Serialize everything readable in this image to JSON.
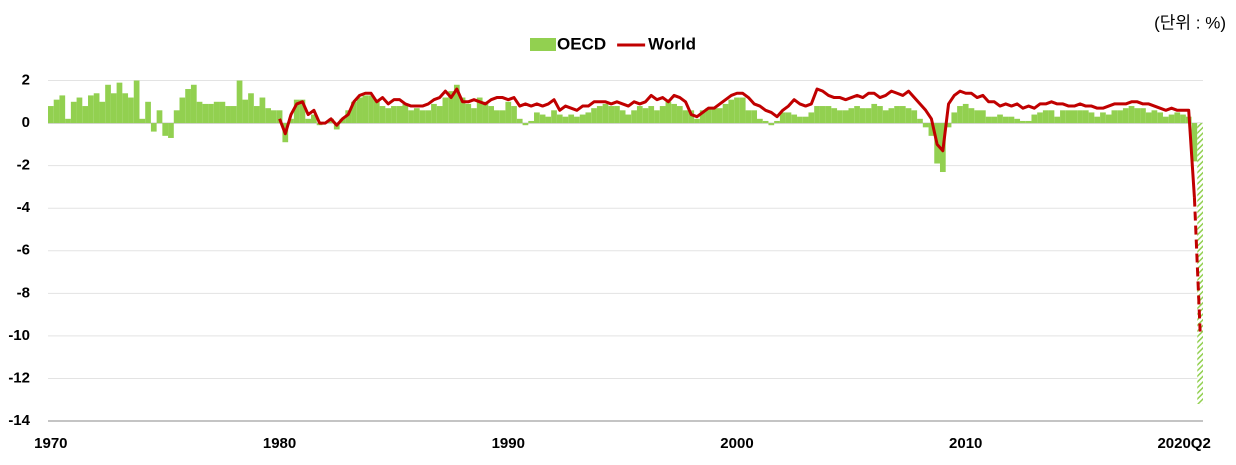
{
  "chart_data": {
    "type": "bar_line",
    "unit_label": "(단위 : %)",
    "categories": [
      "1970",
      null,
      null,
      null,
      null,
      null,
      null,
      null,
      null,
      null,
      null,
      null,
      null,
      null,
      null,
      null,
      null,
      null,
      null,
      null,
      null,
      null,
      null,
      null,
      null,
      null,
      null,
      null,
      null,
      null,
      null,
      null,
      null,
      null,
      null,
      null,
      null,
      null,
      null,
      null,
      "1980",
      null,
      null,
      null,
      null,
      null,
      null,
      null,
      null,
      null,
      null,
      null,
      null,
      null,
      null,
      null,
      null,
      null,
      null,
      null,
      null,
      null,
      null,
      null,
      null,
      null,
      null,
      null,
      null,
      null,
      null,
      null,
      null,
      null,
      null,
      null,
      null,
      null,
      null,
      null,
      "1990",
      null,
      null,
      null,
      null,
      null,
      null,
      null,
      null,
      null,
      null,
      null,
      null,
      null,
      null,
      null,
      null,
      null,
      null,
      null,
      null,
      null,
      null,
      null,
      null,
      null,
      null,
      null,
      null,
      null,
      null,
      null,
      null,
      null,
      null,
      null,
      null,
      null,
      null,
      null,
      "2000",
      null,
      null,
      null,
      null,
      null,
      null,
      null,
      null,
      null,
      null,
      null,
      null,
      null,
      null,
      null,
      null,
      null,
      null,
      null,
      null,
      null,
      null,
      null,
      null,
      null,
      null,
      null,
      null,
      null,
      null,
      null,
      null,
      null,
      null,
      null,
      null,
      null,
      null,
      null,
      "2010",
      null,
      null,
      null,
      null,
      null,
      null,
      null,
      null,
      null,
      null,
      null,
      null,
      null,
      null,
      null,
      null,
      null,
      null,
      null,
      null,
      null,
      null,
      null,
      null,
      null,
      null,
      null,
      null,
      null,
      null,
      null,
      null,
      null,
      null,
      null,
      null,
      null,
      null,
      null,
      null,
      "2020Q2"
    ],
    "series": [
      {
        "name": "OECD",
        "kind": "bar",
        "color": "#92d050",
        "last_bar_hatched": true,
        "values": [
          0.8,
          1.1,
          1.3,
          0.2,
          1.0,
          1.2,
          0.8,
          1.3,
          1.4,
          1.0,
          1.8,
          1.4,
          1.9,
          1.4,
          1.2,
          2.0,
          0.2,
          1.0,
          -0.4,
          0.6,
          -0.6,
          -0.7,
          0.6,
          1.2,
          1.6,
          1.8,
          1.0,
          0.9,
          0.9,
          1.0,
          1.0,
          0.8,
          0.8,
          2.0,
          1.1,
          1.4,
          0.8,
          1.2,
          0.7,
          0.6,
          0.6,
          -0.9,
          0.2,
          1.1,
          1.1,
          0.2,
          0.4,
          -0.1,
          0.0,
          0.2,
          -0.3,
          0.2,
          0.6,
          1.0,
          1.2,
          1.3,
          1.3,
          1.1,
          0.8,
          0.7,
          0.8,
          0.8,
          0.9,
          0.6,
          0.7,
          0.6,
          0.6,
          0.9,
          0.8,
          1.2,
          1.5,
          1.8,
          1.2,
          0.9,
          0.7,
          1.2,
          1.0,
          0.8,
          0.6,
          0.6,
          1.0,
          0.8,
          0.2,
          -0.1,
          0.1,
          0.5,
          0.4,
          0.3,
          0.6,
          0.4,
          0.3,
          0.4,
          0.3,
          0.4,
          0.5,
          0.7,
          0.8,
          0.9,
          0.8,
          0.8,
          0.6,
          0.4,
          0.6,
          0.8,
          0.7,
          0.8,
          0.6,
          0.8,
          1.0,
          0.9,
          0.8,
          0.6,
          0.6,
          0.2,
          0.6,
          0.7,
          0.7,
          0.7,
          0.9,
          1.1,
          1.2,
          1.2,
          0.6,
          0.6,
          0.2,
          0.1,
          -0.1,
          0.1,
          0.5,
          0.5,
          0.4,
          0.3,
          0.3,
          0.5,
          0.8,
          0.8,
          0.8,
          0.7,
          0.6,
          0.6,
          0.7,
          0.8,
          0.7,
          0.7,
          0.9,
          0.8,
          0.6,
          0.7,
          0.8,
          0.8,
          0.7,
          0.6,
          0.2,
          -0.2,
          -0.6,
          -1.9,
          -2.3,
          -0.2,
          0.5,
          0.8,
          0.9,
          0.7,
          0.6,
          0.6,
          0.3,
          0.3,
          0.4,
          0.3,
          0.3,
          0.2,
          0.1,
          0.1,
          0.4,
          0.5,
          0.6,
          0.6,
          0.3,
          0.6,
          0.6,
          0.6,
          0.6,
          0.6,
          0.5,
          0.3,
          0.5,
          0.4,
          0.6,
          0.6,
          0.7,
          0.8,
          0.7,
          0.7,
          0.5,
          0.6,
          0.5,
          0.3,
          0.4,
          0.5,
          0.4,
          0.3,
          -1.8,
          -13.2
        ]
      },
      {
        "name": "World",
        "kind": "line",
        "color": "#c00000",
        "last_segment_dashed": true,
        "values": [
          null,
          null,
          null,
          null,
          null,
          null,
          null,
          null,
          null,
          null,
          null,
          null,
          null,
          null,
          null,
          null,
          null,
          null,
          null,
          null,
          null,
          null,
          null,
          null,
          null,
          null,
          null,
          null,
          null,
          null,
          null,
          null,
          null,
          null,
          null,
          null,
          null,
          null,
          null,
          null,
          0.2,
          -0.5,
          0.4,
          0.9,
          1.0,
          0.4,
          0.6,
          0.0,
          0.0,
          0.2,
          -0.1,
          0.2,
          0.4,
          1.0,
          1.3,
          1.4,
          1.4,
          1.0,
          1.2,
          0.9,
          1.1,
          1.1,
          0.9,
          0.8,
          0.8,
          0.8,
          0.9,
          1.1,
          1.2,
          1.5,
          1.2,
          1.6,
          1.0,
          1.0,
          1.1,
          1.0,
          0.9,
          1.1,
          1.2,
          1.2,
          1.1,
          1.2,
          0.8,
          0.9,
          0.8,
          0.9,
          0.8,
          0.9,
          1.1,
          0.6,
          0.8,
          0.7,
          0.6,
          0.8,
          0.8,
          1.0,
          1.0,
          1.0,
          0.9,
          1.0,
          0.9,
          0.8,
          1.0,
          0.9,
          1.0,
          1.3,
          1.1,
          1.2,
          1.0,
          1.3,
          1.2,
          1.0,
          0.4,
          0.3,
          0.5,
          0.7,
          0.7,
          0.9,
          1.1,
          1.3,
          1.4,
          1.4,
          1.2,
          0.9,
          0.8,
          0.6,
          0.5,
          0.3,
          0.6,
          0.8,
          1.1,
          0.9,
          0.8,
          0.9,
          1.6,
          1.5,
          1.3,
          1.2,
          1.2,
          1.1,
          1.2,
          1.3,
          1.2,
          1.4,
          1.4,
          1.2,
          1.3,
          1.5,
          1.4,
          1.3,
          1.5,
          1.2,
          0.9,
          0.6,
          0.2,
          -1.0,
          -1.3,
          0.9,
          1.3,
          1.5,
          1.4,
          1.4,
          1.2,
          1.3,
          1.0,
          1.0,
          0.8,
          0.9,
          0.8,
          0.9,
          0.7,
          0.8,
          0.7,
          0.9,
          0.9,
          1.0,
          0.9,
          0.9,
          0.8,
          0.8,
          0.9,
          0.8,
          0.8,
          0.7,
          0.7,
          0.8,
          0.9,
          0.9,
          0.9,
          1.0,
          1.0,
          0.9,
          0.9,
          0.8,
          0.7,
          0.6,
          0.7,
          0.6,
          0.6,
          0.6,
          -3.5,
          -9.8
        ]
      }
    ],
    "ylim": [
      -14,
      2.4
    ],
    "yticks": [
      -14,
      -12,
      -10,
      -8,
      -6,
      -4,
      -2,
      0,
      2
    ],
    "grid": true,
    "legend": "top"
  }
}
